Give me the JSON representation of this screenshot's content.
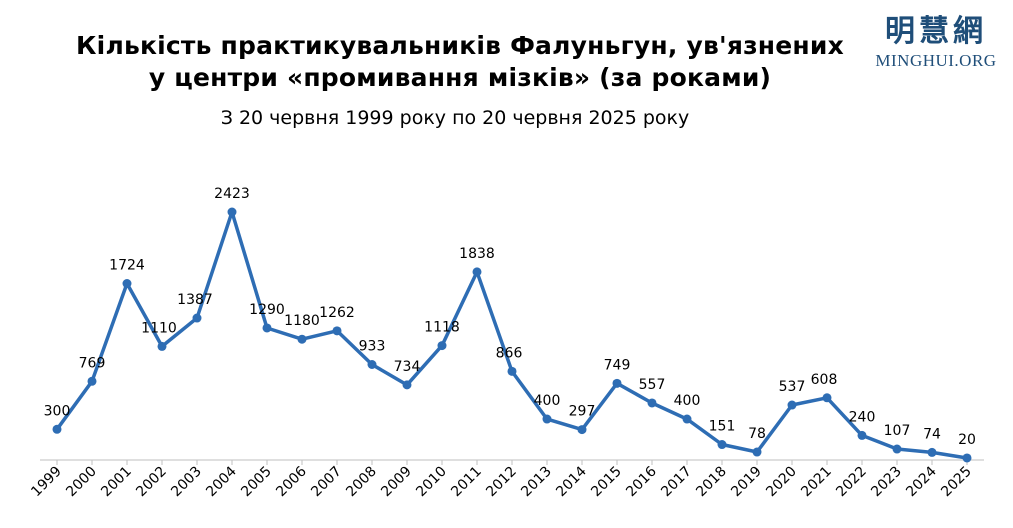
{
  "header": {
    "title_line1": "Кількість практикувальників Фалуньгун, ув'язнених",
    "title_line2": "у центри «промивання мізків» (за роками)",
    "subtitle": "З 20 червня 1999 року по 20 червня 2025 року"
  },
  "logo": {
    "cjk": "明慧網",
    "latin": "MINGHUI.ORG"
  },
  "colors": {
    "line": "#2e6db4",
    "axis": "#bfbfbf",
    "logo": "#1f4e79"
  },
  "chart_data": {
    "type": "line",
    "title": "Кількість практикувальників Фалуньгун, ув'язнених у центри «промивання мізків» (за роками)",
    "subtitle": "З 20 червня 1999 року по 20 червня 2025 року",
    "xlabel": "",
    "ylabel": "",
    "categories": [
      "1999",
      "2000",
      "2001",
      "2002",
      "2003",
      "2004",
      "2005",
      "2006",
      "2007",
      "2008",
      "2009",
      "2010",
      "2011",
      "2012",
      "2013",
      "2014",
      "2015",
      "2016",
      "2017",
      "2018",
      "2019",
      "2020",
      "2021",
      "2022",
      "2023",
      "2024",
      "2025"
    ],
    "values": [
      300,
      769,
      1724,
      1110,
      1387,
      2423,
      1290,
      1180,
      1262,
      933,
      734,
      1118,
      1838,
      866,
      400,
      297,
      749,
      557,
      400,
      151,
      78,
      537,
      608,
      240,
      107,
      74,
      20
    ],
    "ylim": [
      0,
      2500
    ],
    "grid": false,
    "legend": "none",
    "data_labels": true
  }
}
